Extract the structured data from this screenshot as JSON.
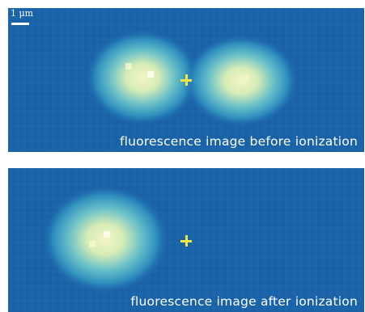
{
  "figure": {
    "scale_bar": {
      "label": "1 μm"
    },
    "panels": [
      {
        "id": "before",
        "caption": "fluorescence image before ionization",
        "spots": 2
      },
      {
        "id": "after",
        "caption": "fluorescence image after ionization",
        "spots": 1
      }
    ],
    "colors": {
      "background": "#1a63a8",
      "marker": "#f2e640",
      "text": "#ffffff"
    },
    "icons": {
      "center_marker": "plus-marker-icon"
    }
  }
}
